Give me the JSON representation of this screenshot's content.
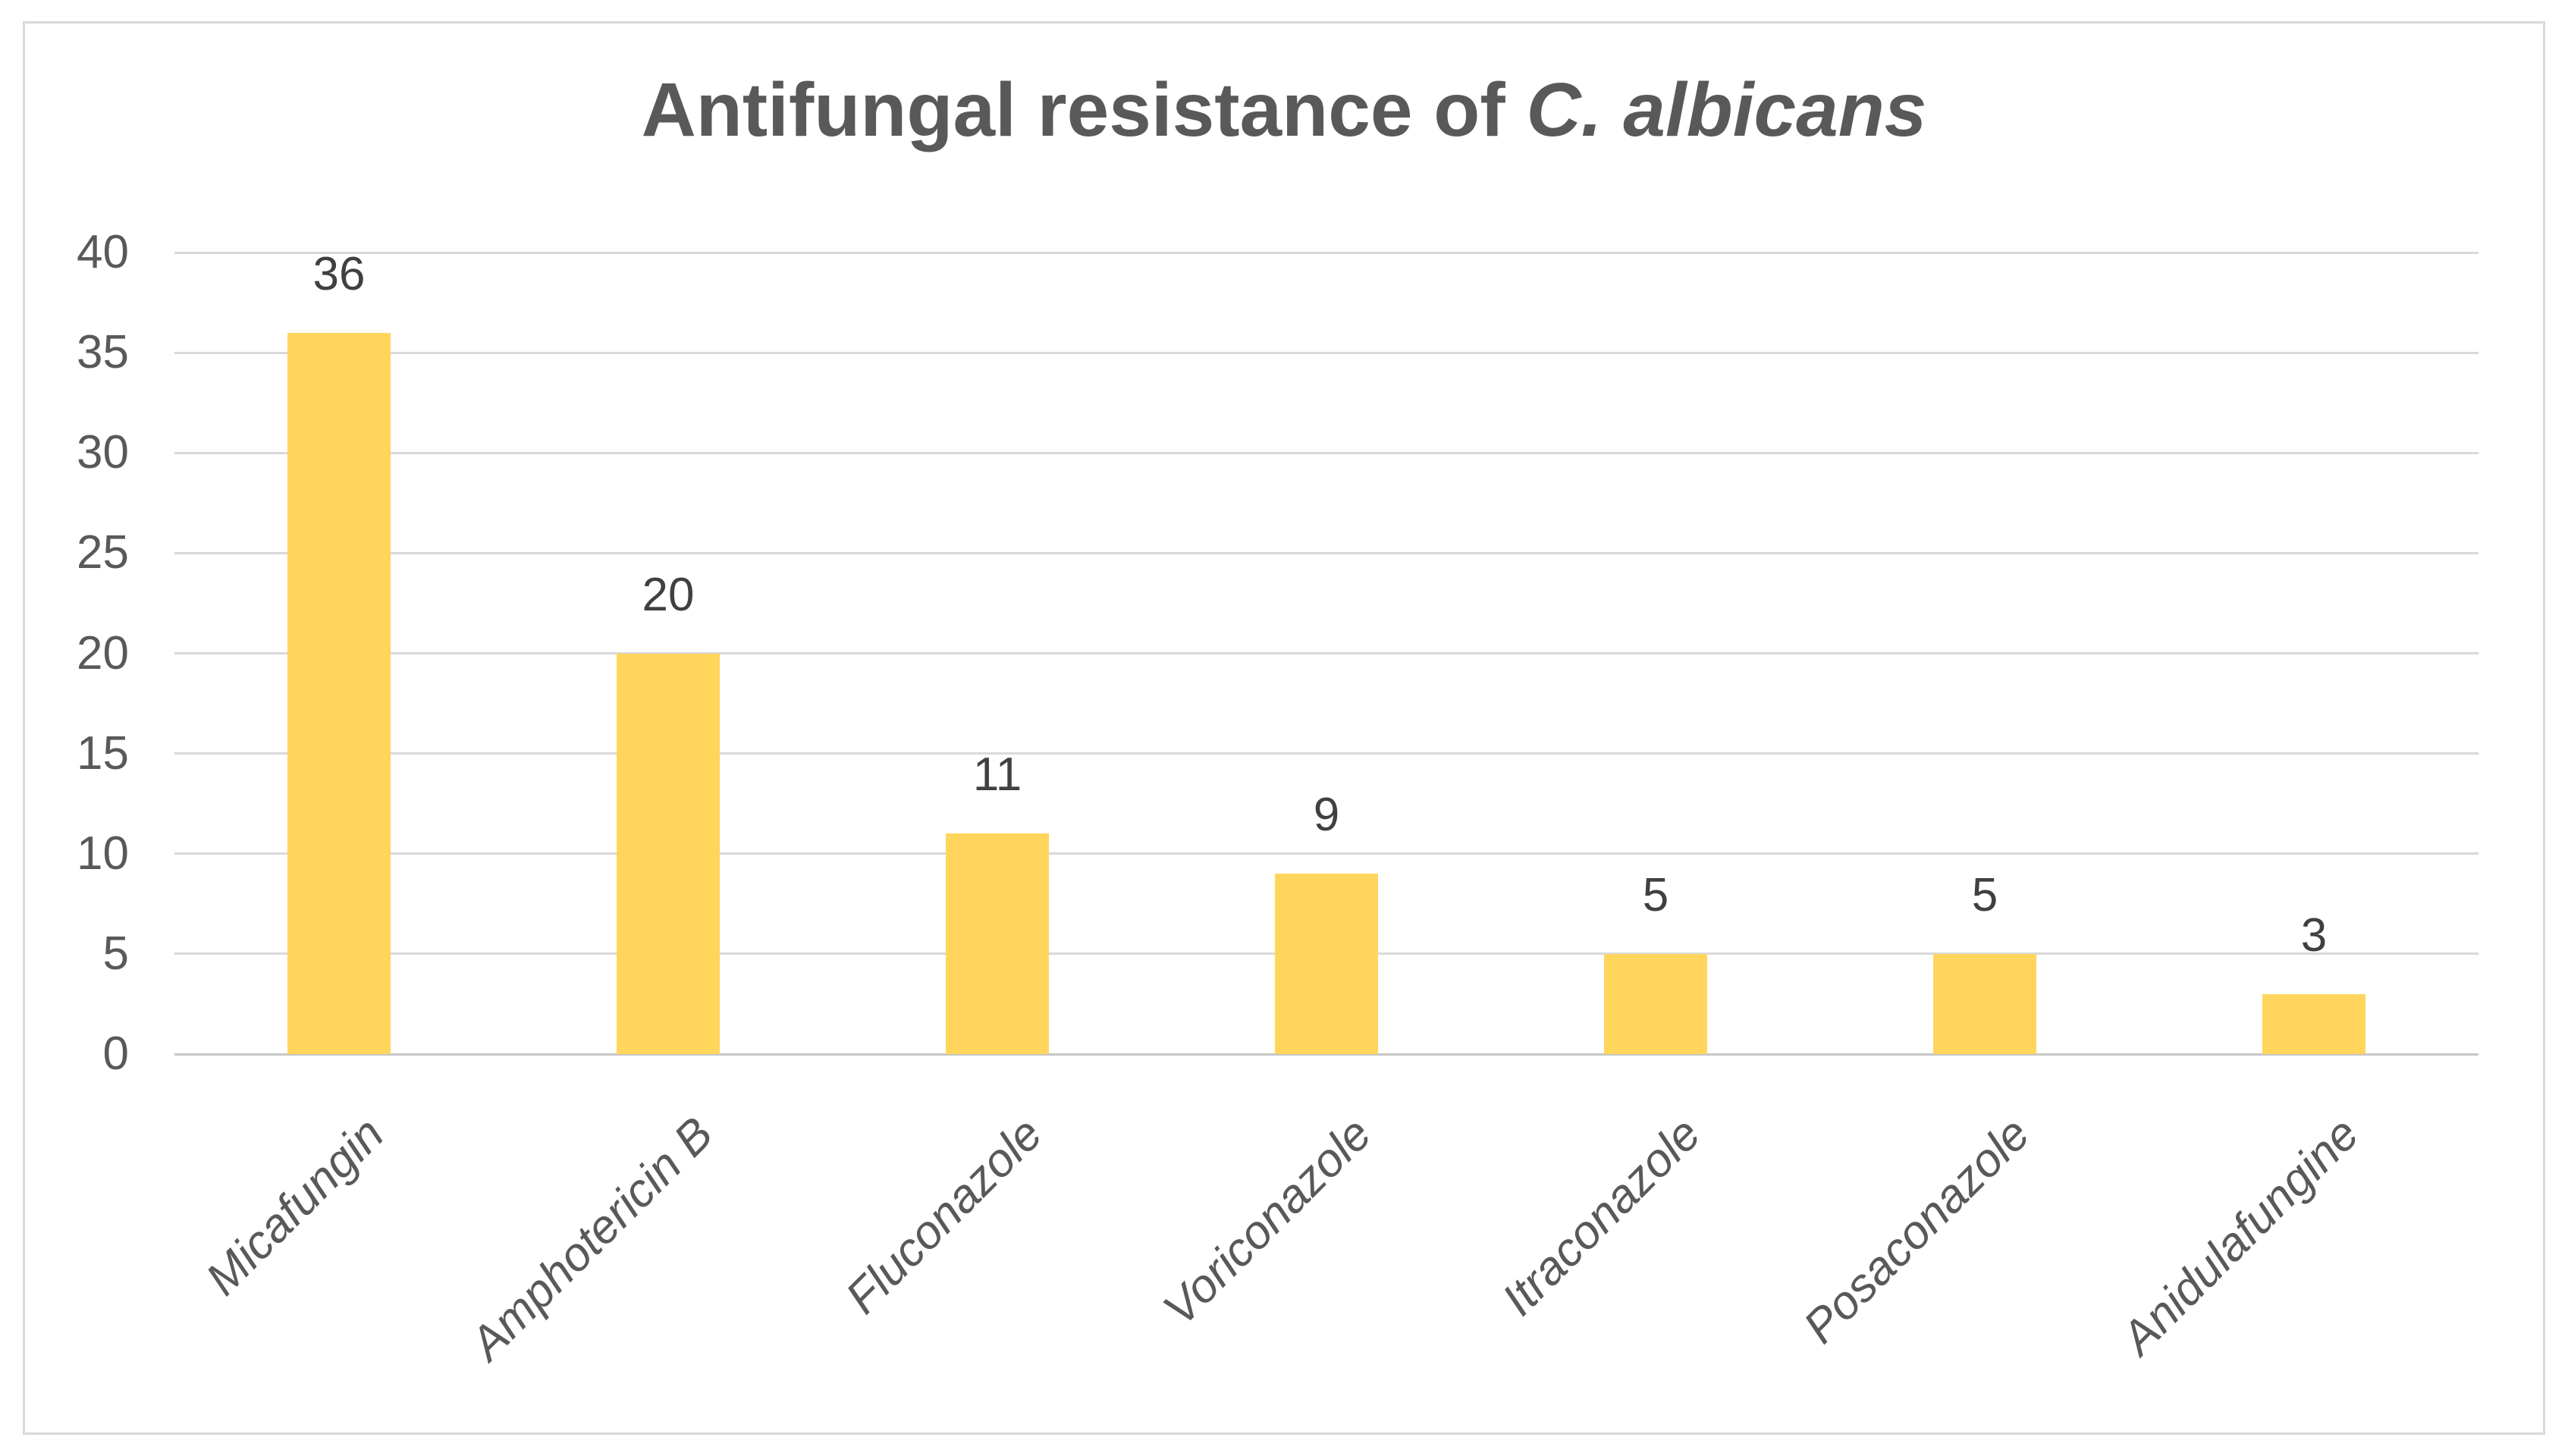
{
  "title": {
    "prefix": "Antifungal resistance of ",
    "species": "C. albicans"
  },
  "chart_data": {
    "type": "bar",
    "title": "Antifungal resistance of C. albicans",
    "title_species_italic": "C. albicans",
    "categories": [
      "Micafungin",
      "Amphotericin B",
      "Fluconazole",
      "Voriconazole",
      "Itraconazole",
      "Posaconazole",
      "Anidulafungine"
    ],
    "values": [
      36,
      20,
      11,
      9,
      5,
      5,
      3
    ],
    "data_labels": [
      "36",
      "20",
      "11",
      "9",
      "5",
      "5",
      "3"
    ],
    "xlabel": "",
    "ylabel": "",
    "ylim": [
      0,
      40
    ],
    "yticks": [
      0,
      5,
      10,
      15,
      20,
      25,
      30,
      35,
      40
    ],
    "grid": "horizontal",
    "legend_position": "none",
    "bar_color": "#FFD55C",
    "gridline_color": "#D9D9D9",
    "axis_line_color": "#C6C6C6",
    "title_color": "#595959",
    "tick_label_color": "#595959",
    "data_label_color": "#404040",
    "category_label_color": "#595959",
    "frame_border_color": "#D9D9D9",
    "background_color": "#FFFFFF",
    "category_label_rotation_deg": 45,
    "category_label_style": "italic"
  }
}
